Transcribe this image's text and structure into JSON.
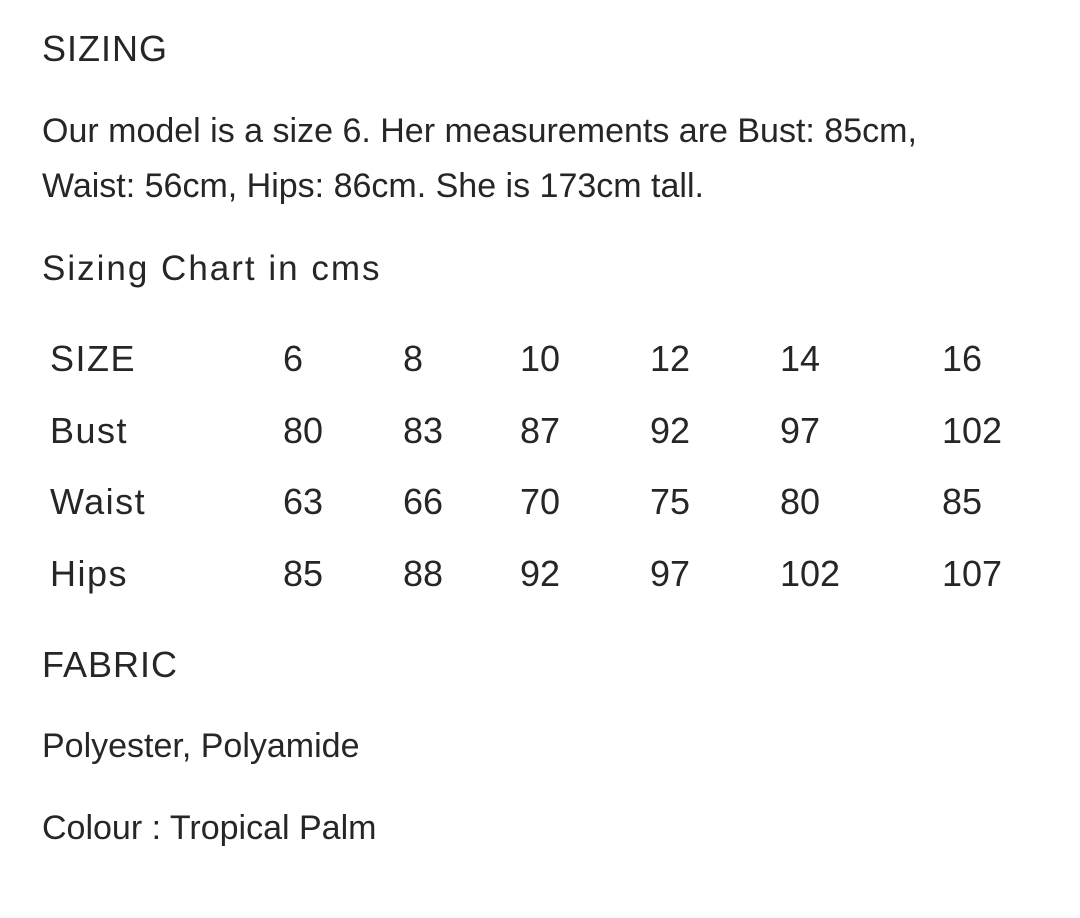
{
  "sizing": {
    "heading": "SIZING",
    "line1": "Our model is a size 6. Her measurements are Bust: 85cm,",
    "line2": "Waist: 56cm, Hips: 86cm. She is 173cm tall."
  },
  "chart": {
    "title": "Sizing Chart in cms",
    "header": [
      "SIZE",
      "6",
      "8",
      "10",
      "12",
      "14",
      "16"
    ],
    "rows": [
      [
        "Bust",
        "80",
        "83",
        "87",
        "92",
        "97",
        "102"
      ],
      [
        "Waist",
        "63",
        "66",
        "70",
        "75",
        "80",
        "85"
      ],
      [
        "Hips",
        "85",
        "88",
        "92",
        "97",
        "102",
        "107"
      ]
    ]
  },
  "fabric": {
    "heading": "FABRIC",
    "material": "Polyester, Polyamide",
    "colour": "Colour : Tropical Palm"
  }
}
